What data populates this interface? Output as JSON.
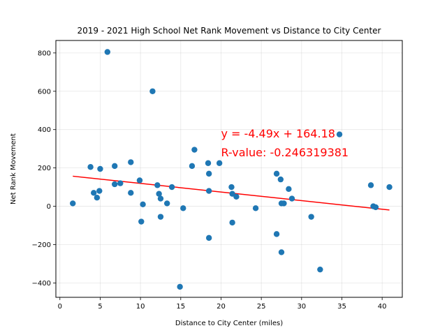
{
  "chart_data": {
    "type": "scatter",
    "title": "2019 - 2021 High School Net Rank Movement vs Distance to City Center",
    "xlabel": "Distance to City Center (miles)",
    "ylabel": "Net Rank Movement",
    "xlim": [
      -0.5,
      42.5
    ],
    "ylim": [
      -475,
      865
    ],
    "xticks": [
      0,
      5,
      10,
      15,
      20,
      25,
      30,
      35,
      40
    ],
    "yticks": [
      -400,
      -200,
      0,
      200,
      400,
      600,
      800
    ],
    "grid": true,
    "colors": {
      "points": "#1f77b4",
      "fit": "#ff0000"
    },
    "points": [
      [
        1.6,
        15
      ],
      [
        3.8,
        205
      ],
      [
        4.2,
        70
      ],
      [
        4.6,
        45
      ],
      [
        4.9,
        80
      ],
      [
        5.0,
        195
      ],
      [
        5.9,
        805
      ],
      [
        6.8,
        210
      ],
      [
        6.8,
        115
      ],
      [
        7.5,
        120
      ],
      [
        8.8,
        230
      ],
      [
        8.8,
        70
      ],
      [
        9.9,
        135
      ],
      [
        10.1,
        -80
      ],
      [
        10.3,
        10
      ],
      [
        11.5,
        600
      ],
      [
        12.1,
        110
      ],
      [
        12.3,
        65
      ],
      [
        12.5,
        40
      ],
      [
        12.5,
        -55
      ],
      [
        13.3,
        15
      ],
      [
        13.9,
        100
      ],
      [
        14.9,
        -420
      ],
      [
        15.3,
        -10
      ],
      [
        16.4,
        210
      ],
      [
        16.7,
        295
      ],
      [
        18.4,
        225
      ],
      [
        18.5,
        170
      ],
      [
        18.5,
        80
      ],
      [
        18.5,
        -165
      ],
      [
        19.8,
        225
      ],
      [
        21.3,
        100
      ],
      [
        21.4,
        65
      ],
      [
        21.4,
        -85
      ],
      [
        21.9,
        50
      ],
      [
        24.3,
        -10
      ],
      [
        26.9,
        170
      ],
      [
        26.9,
        -145
      ],
      [
        27.4,
        140
      ],
      [
        27.5,
        -240
      ],
      [
        27.5,
        15
      ],
      [
        27.8,
        15
      ],
      [
        28.4,
        90
      ],
      [
        28.8,
        40
      ],
      [
        31.2,
        -55
      ],
      [
        32.3,
        -330
      ],
      [
        34.7,
        375
      ],
      [
        38.6,
        110
      ],
      [
        38.9,
        0
      ],
      [
        39.2,
        -5
      ],
      [
        40.9,
        100
      ]
    ],
    "fit_line": {
      "slope": -4.49,
      "intercept": 164.18,
      "x_range": [
        1.6,
        40.9
      ]
    },
    "annotation": {
      "line1": "y = -4.49x + 164.18",
      "line2": "R-value: -0.246319381",
      "x": 20,
      "y": 380
    }
  }
}
